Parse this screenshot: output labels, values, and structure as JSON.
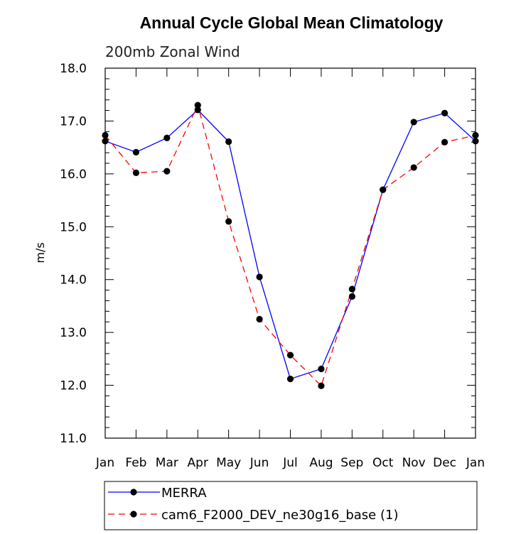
{
  "chart_data": {
    "type": "line",
    "title": "Annual Cycle Global Mean Climatology",
    "subtitle": "200mb Zonal Wind",
    "ylabel": "m/s",
    "xlabel": "",
    "categories": [
      "Jan",
      "Feb",
      "Mar",
      "Apr",
      "May",
      "Jun",
      "Jul",
      "Aug",
      "Sep",
      "Oct",
      "Nov",
      "Dec",
      "Jan"
    ],
    "ylim": [
      11.0,
      18.0
    ],
    "yticks": [
      "11.0",
      "12.0",
      "13.0",
      "14.0",
      "15.0",
      "16.0",
      "17.0",
      "18.0"
    ],
    "grid": false,
    "legend_position": "bottom",
    "series": [
      {
        "name": "MERRA",
        "color": "#0000ff",
        "dash": "solid",
        "values": [
          16.62,
          16.41,
          16.68,
          17.21,
          16.61,
          14.05,
          12.12,
          12.31,
          13.68,
          15.7,
          16.98,
          17.15,
          16.62
        ]
      },
      {
        "name": "cam6_F2000_DEV_ne30g16_base (1)",
        "color": "#ff0000",
        "dash": "dashed",
        "values": [
          16.73,
          16.02,
          16.05,
          17.3,
          15.1,
          13.25,
          12.57,
          11.99,
          13.82,
          15.7,
          16.12,
          16.6,
          16.73
        ]
      }
    ]
  }
}
